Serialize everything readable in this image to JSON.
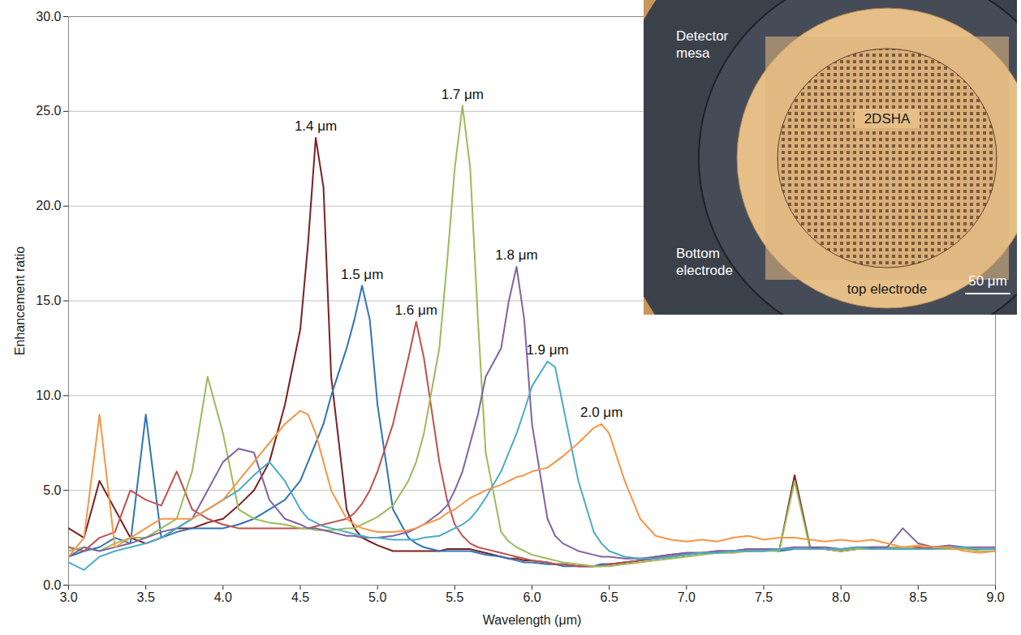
{
  "chart_data": {
    "type": "line",
    "x_label": "Wavelength (μm)",
    "y_label": "Enhancement ratio",
    "xlim": [
      3.0,
      9.0
    ],
    "ylim": [
      0.0,
      30.0
    ],
    "xticks": [
      {
        "value": 3,
        "label": "3.0"
      },
      {
        "value": 3.5,
        "label": "3.5"
      },
      {
        "value": 4,
        "label": "4.0"
      },
      {
        "value": 4.5,
        "label": "4.5"
      },
      {
        "value": 5,
        "label": "5.0"
      },
      {
        "value": 5.5,
        "label": "5.5"
      },
      {
        "value": 6,
        "label": "6.0"
      },
      {
        "value": 6.5,
        "label": "6.5"
      },
      {
        "value": 7,
        "label": "7.0"
      },
      {
        "value": 7.5,
        "label": "7.5"
      },
      {
        "value": 8,
        "label": "8.0"
      },
      {
        "value": 8.5,
        "label": "8.5"
      },
      {
        "value": 9,
        "label": "9.0"
      }
    ],
    "yticks": [
      {
        "value": 0,
        "label": "0.0"
      },
      {
        "value": 5,
        "label": "5.0"
      },
      {
        "value": 10,
        "label": "10.0"
      },
      {
        "value": 15,
        "label": "15.0"
      },
      {
        "value": 20,
        "label": "20.0"
      },
      {
        "value": 25,
        "label": "25.0"
      },
      {
        "value": 30,
        "label": "30.0"
      }
    ],
    "grid": true,
    "annotations": [
      "Detector mesa",
      "2DSHA",
      "Bottom electrode",
      "top electrode",
      "50 μm"
    ],
    "x": [
      3.0,
      3.1,
      3.2,
      3.3,
      3.4,
      3.5,
      3.6,
      3.7,
      3.8,
      3.9,
      4.0,
      4.1,
      4.2,
      4.3,
      4.4,
      4.5,
      4.55,
      4.6,
      4.65,
      4.7,
      4.8,
      4.85,
      4.9,
      4.95,
      5.0,
      5.1,
      5.2,
      5.25,
      5.3,
      5.4,
      5.45,
      5.5,
      5.55,
      5.6,
      5.65,
      5.7,
      5.8,
      5.85,
      5.9,
      5.95,
      6.0,
      6.1,
      6.15,
      6.2,
      6.3,
      6.4,
      6.45,
      6.5,
      6.6,
      6.7,
      6.8,
      6.9,
      7.0,
      7.1,
      7.2,
      7.3,
      7.4,
      7.5,
      7.6,
      7.7,
      7.8,
      7.9,
      8.0,
      8.1,
      8.2,
      8.3,
      8.4,
      8.5,
      8.6,
      8.7,
      8.8,
      8.9,
      9.0
    ],
    "series": [
      {
        "name": "1.4 μm",
        "color": "#7b2020",
        "values": [
          3.0,
          2.5,
          5.5,
          4.0,
          2.5,
          2.2,
          2.5,
          3.0,
          3.0,
          3.3,
          3.5,
          4.2,
          5.0,
          6.5,
          9.5,
          13.5,
          18.0,
          23.6,
          21.0,
          11.0,
          4.0,
          3.0,
          2.5,
          2.3,
          2.1,
          1.8,
          1.8,
          1.8,
          1.8,
          1.8,
          1.9,
          1.9,
          1.9,
          1.9,
          1.8,
          1.7,
          1.5,
          1.4,
          1.4,
          1.3,
          1.3,
          1.2,
          1.1,
          1.1,
          1.0,
          1.0,
          1.1,
          1.1,
          1.2,
          1.3,
          1.5,
          1.6,
          1.7,
          1.7,
          1.8,
          1.8,
          1.9,
          1.9,
          1.8,
          5.8,
          2.0,
          1.9,
          1.8,
          1.9,
          2.0,
          2.0,
          1.9,
          1.9,
          2.0,
          2.0,
          1.9,
          1.9,
          1.9
        ]
      },
      {
        "name": "1.5 μm",
        "color": "#2e75b6",
        "values": [
          1.5,
          1.8,
          2.0,
          2.5,
          2.2,
          9.0,
          2.5,
          2.8,
          3.0,
          3.0,
          3.0,
          3.2,
          3.5,
          4.0,
          4.5,
          5.5,
          6.5,
          7.5,
          8.5,
          10.0,
          12.5,
          14.0,
          15.8,
          14.0,
          9.5,
          4.0,
          2.5,
          2.2,
          2.0,
          1.8,
          1.8,
          1.8,
          1.8,
          1.8,
          1.7,
          1.6,
          1.5,
          1.4,
          1.3,
          1.2,
          1.2,
          1.1,
          1.1,
          1.0,
          1.0,
          1.0,
          1.1,
          1.1,
          1.2,
          1.3,
          1.4,
          1.5,
          1.6,
          1.7,
          1.7,
          1.8,
          1.8,
          1.9,
          1.8,
          1.9,
          1.9,
          1.9,
          1.8,
          1.9,
          1.9,
          2.0,
          1.9,
          1.9,
          1.9,
          2.0,
          1.9,
          1.9,
          1.9
        ]
      },
      {
        "name": "1.6 μm",
        "color": "#c0504d",
        "values": [
          2.0,
          1.8,
          2.5,
          2.8,
          5.0,
          4.5,
          4.2,
          6.0,
          4.0,
          3.5,
          3.2,
          3.0,
          3.0,
          3.0,
          3.0,
          3.0,
          3.0,
          3.1,
          3.2,
          3.3,
          3.5,
          3.8,
          4.3,
          5.0,
          6.0,
          8.5,
          12.0,
          13.9,
          12.0,
          6.5,
          4.5,
          3.2,
          2.6,
          2.2,
          2.0,
          1.9,
          1.7,
          1.6,
          1.5,
          1.4,
          1.3,
          1.2,
          1.1,
          1.1,
          1.0,
          1.0,
          1.0,
          1.1,
          1.2,
          1.3,
          1.4,
          1.5,
          1.6,
          1.7,
          1.7,
          1.8,
          1.8,
          1.8,
          1.9,
          1.9,
          1.9,
          1.9,
          1.8,
          1.9,
          1.9,
          1.9,
          1.9,
          2.0,
          1.9,
          1.9,
          1.9,
          1.9,
          1.9
        ]
      },
      {
        "name": "1.7 μm",
        "color": "#9bbb59",
        "values": [
          1.8,
          2.0,
          1.8,
          2.2,
          2.5,
          2.5,
          3.0,
          3.5,
          6.0,
          11.0,
          8.0,
          4.0,
          3.5,
          3.3,
          3.2,
          3.0,
          3.0,
          2.9,
          2.9,
          2.9,
          3.0,
          3.0,
          3.2,
          3.4,
          3.6,
          4.2,
          5.5,
          6.5,
          8.0,
          12.5,
          17.0,
          22.0,
          25.3,
          22.0,
          14.0,
          7.0,
          2.8,
          2.3,
          2.0,
          1.8,
          1.6,
          1.4,
          1.3,
          1.2,
          1.1,
          1.0,
          1.0,
          1.0,
          1.1,
          1.2,
          1.3,
          1.4,
          1.5,
          1.6,
          1.7,
          1.7,
          1.8,
          1.8,
          1.8,
          5.5,
          1.9,
          1.9,
          1.8,
          1.9,
          1.9,
          2.0,
          2.0,
          1.9,
          1.9,
          1.9,
          1.9,
          1.8,
          1.8
        ]
      },
      {
        "name": "1.8 μm",
        "color": "#8064a2",
        "values": [
          1.5,
          2.0,
          1.8,
          2.0,
          2.2,
          2.5,
          2.8,
          3.0,
          3.5,
          5.0,
          6.5,
          7.2,
          7.0,
          4.5,
          3.5,
          3.2,
          3.0,
          3.0,
          2.9,
          2.8,
          2.6,
          2.6,
          2.5,
          2.5,
          2.5,
          2.6,
          2.8,
          3.0,
          3.2,
          3.8,
          4.2,
          5.0,
          6.0,
          7.5,
          9.0,
          11.0,
          12.5,
          15.0,
          16.8,
          14.0,
          8.5,
          3.5,
          2.6,
          2.2,
          1.8,
          1.6,
          1.5,
          1.5,
          1.4,
          1.4,
          1.5,
          1.6,
          1.7,
          1.7,
          1.8,
          1.8,
          1.9,
          1.9,
          1.9,
          2.0,
          2.0,
          2.0,
          1.9,
          2.0,
          2.0,
          2.0,
          3.0,
          2.2,
          2.0,
          2.1,
          2.0,
          2.0,
          2.0
        ]
      },
      {
        "name": "1.9 μm",
        "color": "#4bacc6",
        "values": [
          1.2,
          0.8,
          1.5,
          1.8,
          2.0,
          2.2,
          2.5,
          3.0,
          3.5,
          4.0,
          4.5,
          5.0,
          5.8,
          6.5,
          5.5,
          4.0,
          3.5,
          3.3,
          3.1,
          3.0,
          2.8,
          2.7,
          2.6,
          2.5,
          2.5,
          2.4,
          2.4,
          2.4,
          2.5,
          2.6,
          2.8,
          3.0,
          3.2,
          3.5,
          4.0,
          4.6,
          6.0,
          7.0,
          8.0,
          9.2,
          10.5,
          11.8,
          11.5,
          9.5,
          5.5,
          2.8,
          2.2,
          1.8,
          1.5,
          1.4,
          1.4,
          1.5,
          1.6,
          1.7,
          1.7,
          1.8,
          1.8,
          1.8,
          1.9,
          1.9,
          1.9,
          1.9,
          1.9,
          2.0,
          1.9,
          1.9,
          1.9,
          1.9,
          1.9,
          2.0,
          2.0,
          1.9,
          1.9
        ]
      },
      {
        "name": "2.0 μm",
        "color": "#f79646",
        "values": [
          1.5,
          2.5,
          9.0,
          2.0,
          2.5,
          3.0,
          3.5,
          3.5,
          3.5,
          4.0,
          4.5,
          5.5,
          6.5,
          7.5,
          8.5,
          9.2,
          9.0,
          8.0,
          6.5,
          5.0,
          3.5,
          3.2,
          3.0,
          2.9,
          2.8,
          2.8,
          2.9,
          3.0,
          3.2,
          3.5,
          3.8,
          4.0,
          4.3,
          4.6,
          4.8,
          5.0,
          5.3,
          5.5,
          5.7,
          5.8,
          6.0,
          6.2,
          6.5,
          6.8,
          7.5,
          8.3,
          8.5,
          8.0,
          5.5,
          3.5,
          2.6,
          2.4,
          2.3,
          2.4,
          2.3,
          2.5,
          2.6,
          2.4,
          2.5,
          2.5,
          2.4,
          2.3,
          2.4,
          2.3,
          2.4,
          2.2,
          2.0,
          2.1,
          2.0,
          2.0,
          1.8,
          1.7,
          1.8
        ]
      }
    ]
  }
}
